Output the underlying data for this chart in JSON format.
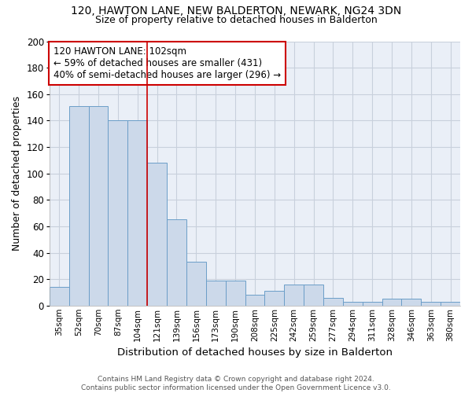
{
  "title1": "120, HAWTON LANE, NEW BALDERTON, NEWARK, NG24 3DN",
  "title2": "Size of property relative to detached houses in Balderton",
  "xlabel": "Distribution of detached houses by size in Balderton",
  "ylabel": "Number of detached properties",
  "categories": [
    "35sqm",
    "52sqm",
    "70sqm",
    "87sqm",
    "104sqm",
    "121sqm",
    "139sqm",
    "156sqm",
    "173sqm",
    "190sqm",
    "208sqm",
    "225sqm",
    "242sqm",
    "259sqm",
    "277sqm",
    "294sqm",
    "311sqm",
    "328sqm",
    "346sqm",
    "363sqm",
    "380sqm"
  ],
  "values": [
    14,
    151,
    151,
    140,
    140,
    108,
    65,
    33,
    19,
    19,
    8,
    11,
    16,
    16,
    6,
    3,
    3,
    5,
    5,
    3,
    3
  ],
  "bar_color": "#ccd9ea",
  "bar_edge_color": "#6b9ec8",
  "grid_color": "#c8d0dc",
  "bg_color": "#eaeff7",
  "annotation_line1": "120 HAWTON LANE: 102sqm",
  "annotation_line2": "← 59% of detached houses are smaller (431)",
  "annotation_line3": "40% of semi-detached houses are larger (296) →",
  "annotation_box_color": "#ffffff",
  "annotation_box_edge": "#cc0000",
  "vline_x": 4.5,
  "vline_color": "#cc0000",
  "footer1": "Contains HM Land Registry data © Crown copyright and database right 2024.",
  "footer2": "Contains public sector information licensed under the Open Government Licence v3.0.",
  "ylim": [
    0,
    200
  ],
  "yticks": [
    0,
    20,
    40,
    60,
    80,
    100,
    120,
    140,
    160,
    180,
    200
  ]
}
